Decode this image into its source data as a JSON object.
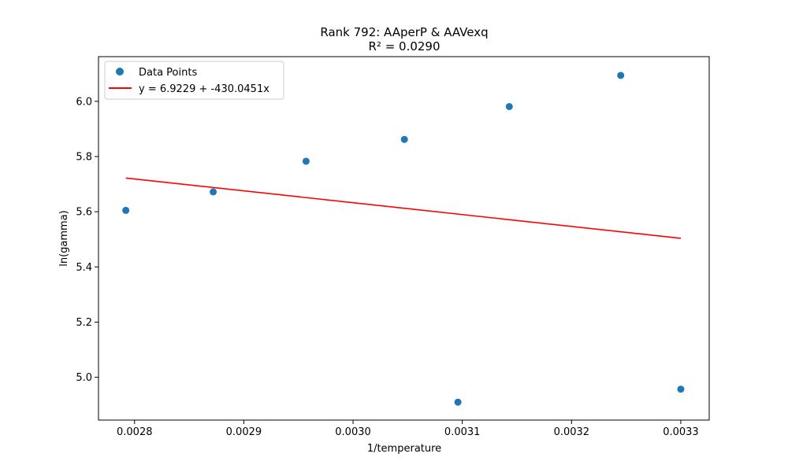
{
  "chart_data": {
    "type": "scatter",
    "title": "Rank 792: AAperP & AAVexq",
    "subtitle": "R² = 0.0290",
    "xlabel": "1/temperature",
    "ylabel": "ln(gamma)",
    "xlim": [
      0.002767,
      0.003326
    ],
    "ylim": [
      4.845,
      6.162
    ],
    "xticks": [
      0.0028,
      0.0029,
      0.003,
      0.0031,
      0.0032,
      0.0033
    ],
    "xtick_labels": [
      "0.0028",
      "0.0029",
      "0.0030",
      "0.0031",
      "0.0032",
      "0.0033"
    ],
    "yticks": [
      5.0,
      5.2,
      5.4,
      5.6,
      5.8,
      6.0
    ],
    "ytick_labels": [
      "5.0",
      "5.2",
      "5.4",
      "5.6",
      "5.8",
      "6.0"
    ],
    "grid": false,
    "legend_placement": "top-left",
    "series": [
      {
        "name": "Data Points",
        "kind": "scatter",
        "color": "#1f77b4",
        "x": [
          0.002792,
          0.002872,
          0.002957,
          0.003047,
          0.003096,
          0.003143,
          0.003245,
          0.0033
        ],
        "y": [
          5.605,
          5.672,
          5.783,
          5.862,
          4.91,
          5.981,
          6.094,
          4.957
        ]
      },
      {
        "name": "y = 6.9229 + -430.0451x",
        "kind": "line",
        "color": "#ff0000",
        "x": [
          0.002792,
          0.0033
        ],
        "y": [
          5.7222,
          5.5037
        ]
      }
    ]
  }
}
